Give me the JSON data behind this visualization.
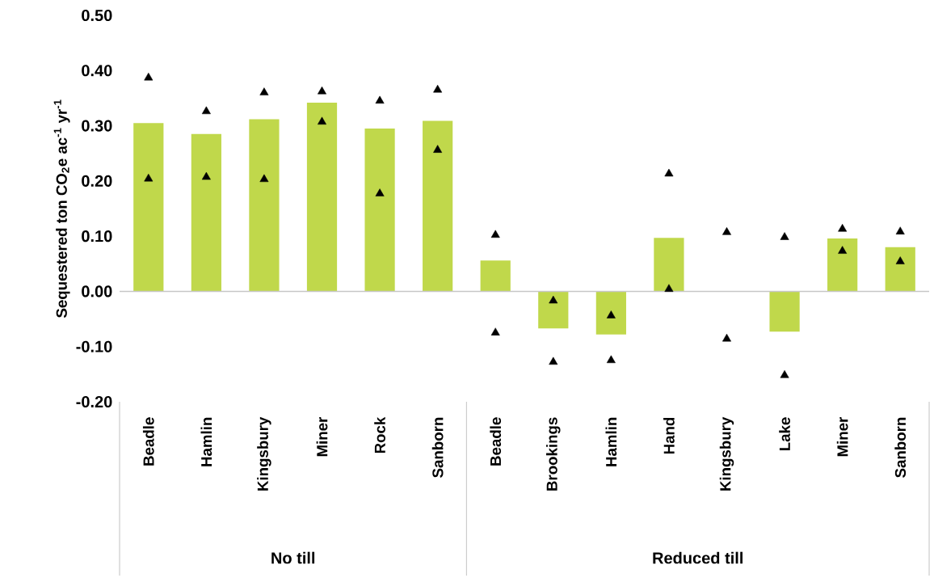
{
  "chart_data": {
    "type": "bar",
    "ylabel": "Sequestered ton CO$_{2}$e ac$^{-1}$ yr$^{-1}$",
    "categories": [
      "Beadle",
      "Hamlin",
      "Kingsbury",
      "Miner",
      "Rock",
      "Sanborn",
      "Beadle",
      "Brookings",
      "Hamlin",
      "Hand",
      "Kingsbury",
      "Lake",
      "Miner",
      "Sanborn"
    ],
    "series": [
      {
        "color": "#c0d84b",
        "values": [
          0.305,
          0.285,
          0.312,
          0.342,
          0.295,
          0.309,
          0.056,
          -0.067,
          -0.078,
          0.097,
          null,
          -0.073,
          0.096,
          0.08
        ]
      },
      {
        "type": "scatter",
        "color": "#000000",
        "marker": "triangle",
        "values": [
          0.387,
          0.326,
          0.36,
          0.362,
          0.345,
          0.365,
          0.102,
          -0.017,
          -0.044,
          0.213,
          0.107,
          0.098,
          0.113,
          0.108
        ]
      },
      {
        "type": "scatter",
        "color": "#000000",
        "marker": "triangle",
        "values": [
          0.204,
          0.207,
          0.203,
          0.307,
          0.177,
          0.256,
          -0.075,
          -0.128,
          -0.125,
          0.004,
          -0.086,
          -0.152,
          0.073,
          0.054
        ]
      }
    ],
    "ylim": [
      -0.2,
      0.5
    ],
    "yticks": [
      {
        "value": -0.2,
        "label": "-0.20"
      },
      {
        "value": -0.1,
        "label": "-0.10"
      },
      {
        "value": 0,
        "label": "0.00"
      },
      {
        "value": 0.1,
        "label": "0.10"
      },
      {
        "value": 0.2,
        "label": "0.20"
      },
      {
        "value": 0.3,
        "label": "0.30"
      },
      {
        "value": 0.4,
        "label": "0.40"
      },
      {
        "value": 0.5,
        "label": "0.50"
      }
    ],
    "annotations": [
      "No till",
      "Reduced till"
    ]
  }
}
